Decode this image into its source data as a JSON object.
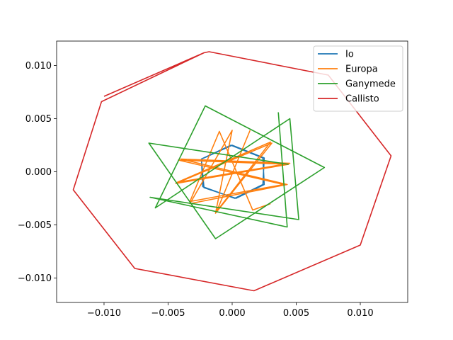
{
  "chart_data": {
    "type": "line",
    "title": "",
    "xlabel": "",
    "ylabel": "",
    "xlim": [
      -0.0137,
      0.0137
    ],
    "ylim": [
      -0.0123,
      0.0123
    ],
    "xticks": [
      -0.01,
      -0.005,
      0.0,
      0.005,
      0.01
    ],
    "xtick_labels": [
      "−0.010",
      "−0.005",
      "0.000",
      "0.005",
      "0.010"
    ],
    "yticks": [
      -0.01,
      -0.005,
      0.0,
      0.005,
      0.01
    ],
    "ytick_labels": [
      "−0.010",
      "−0.005",
      "0.000",
      "0.005",
      "0.010"
    ],
    "grid": false,
    "legend_position": "top-right",
    "series": [
      {
        "name": "Io",
        "color": "#1f77b4",
        "points": [
          [
            -0.0022,
            0.0013
          ],
          [
            0.0,
            0.0025
          ],
          [
            0.0025,
            0.0013
          ],
          [
            0.0024,
            -0.0012
          ],
          [
            0.0002,
            -0.0025
          ],
          [
            -0.0023,
            -0.0014
          ],
          [
            -0.0024,
            0.0012
          ],
          [
            -0.0001,
            0.0025
          ],
          [
            0.0024,
            0.0013
          ],
          [
            0.0025,
            -0.0012
          ],
          [
            0.0003,
            -0.0025
          ],
          [
            -0.0022,
            -0.0015
          ],
          [
            -0.0024,
            0.0011
          ]
        ]
      },
      {
        "name": "Europa",
        "color": "#ff7f0e",
        "points": [
          [
            0.0014,
            0.0039
          ],
          [
            -0.0012,
            -0.0037
          ],
          [
            0.003,
            0.0028
          ],
          [
            -0.0043,
            -0.001
          ],
          [
            0.0045,
            0.0008
          ],
          [
            -0.004,
            0.0012
          ],
          [
            0.0043,
            -0.0012
          ],
          [
            -0.0033,
            -0.003
          ],
          [
            0.0,
            0.0039
          ],
          [
            -0.0013,
            -0.0039
          ],
          [
            0.0031,
            0.0027
          ],
          [
            -0.0044,
            -0.0011
          ],
          [
            0.0044,
            0.0007
          ],
          [
            -0.0042,
            0.0011
          ],
          [
            0.004,
            -0.0012
          ],
          [
            -0.0033,
            -0.0028
          ],
          [
            -0.001,
            0.0038
          ],
          [
            0.0016,
            -0.0036
          ],
          [
            0.003,
            -0.003
          ]
        ]
      },
      {
        "name": "Ganymede",
        "color": "#2ca02c",
        "points": [
          [
            0.0036,
            0.0056
          ],
          [
            0.0043,
            -0.0052
          ],
          [
            -0.0064,
            -0.0024
          ],
          [
            0.0052,
            -0.0045
          ],
          [
            0.0045,
            0.005
          ],
          [
            -0.006,
            -0.0034
          ],
          [
            -0.0021,
            0.0062
          ],
          [
            0.0072,
            0.0004
          ],
          [
            -0.0013,
            -0.0063
          ],
          [
            -0.0065,
            0.0027
          ],
          [
            0.0044,
            0.0007
          ]
        ]
      },
      {
        "name": "Callisto",
        "color": "#d62728",
        "points": [
          [
            -0.01,
            0.0071
          ],
          [
            -0.0022,
            0.0112
          ],
          [
            -0.0018,
            0.0113
          ],
          [
            0.0075,
            0.0091
          ],
          [
            0.0124,
            0.0015
          ],
          [
            0.01,
            -0.0069
          ],
          [
            0.0017,
            -0.0112
          ],
          [
            -0.0076,
            -0.0091
          ],
          [
            -0.0124,
            -0.0017
          ],
          [
            -0.0102,
            0.0066
          ],
          [
            -0.0022,
            0.0112
          ]
        ]
      }
    ]
  }
}
